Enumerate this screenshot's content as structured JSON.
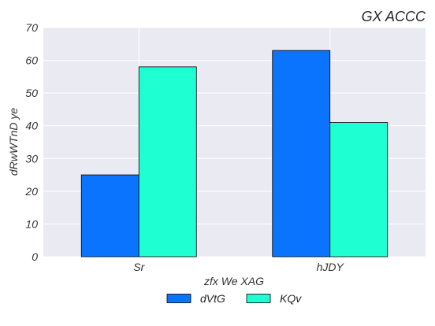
{
  "chart_data": {
    "type": "bar",
    "title": "GX  ACCC",
    "xlabel": "zfx  We XAG",
    "ylabel": "dRwWTnD ye",
    "categories": [
      "Sr",
      "hJDY"
    ],
    "series": [
      {
        "name": "dVtG",
        "values": [
          25,
          63
        ],
        "color": "#0a74ff"
      },
      {
        "name": "KQv",
        "values": [
          58,
          41
        ],
        "color": "#1effd2"
      }
    ],
    "ylim": [
      0,
      70
    ],
    "yticks": [
      0,
      10,
      20,
      30,
      40,
      50,
      60,
      70
    ],
    "grid": true,
    "legend_position": "bottom-center",
    "background_color": "#eaeaf2"
  }
}
